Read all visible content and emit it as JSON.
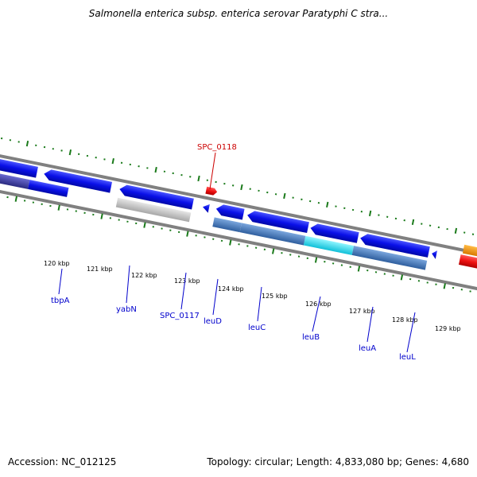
{
  "title": "Salmonella enterica subsp. enterica serovar Paratyphi C stra...",
  "footer": {
    "accession": "Accession: NC_012125",
    "topology": "Topology: circular; Length: 4,833,080 bp; Genes: 4,680"
  },
  "kbp_labels": [
    "120 kbp",
    "121 kbp",
    "122 kbp",
    "123 kbp",
    "124 kbp",
    "125 kbp",
    "126 kbp",
    "127 kbp",
    "128 kbp",
    "129 kbp"
  ],
  "gene_labels": {
    "spc0118": "SPC_0118",
    "tbpA": "tbpA",
    "yabN": "yabN",
    "spc0117": "SPC_0117",
    "leuD": "leuD",
    "leuC": "leuC",
    "leuB": "leuB",
    "leuA": "leuA",
    "leuL": "leuL"
  },
  "colors": {
    "gene_blue": "#0a10e8",
    "gene_red": "#ee1111",
    "gene_orange": "#f49000",
    "cds_steel": "#4a7fbf",
    "cds_cyan": "#22e0f0",
    "cds_navy": "#3a3aa0",
    "cds_grey": "#c8c8c8",
    "tick_green": "#1a7a1a",
    "label_blue": "#0000cc",
    "label_red": "#cc0000"
  }
}
